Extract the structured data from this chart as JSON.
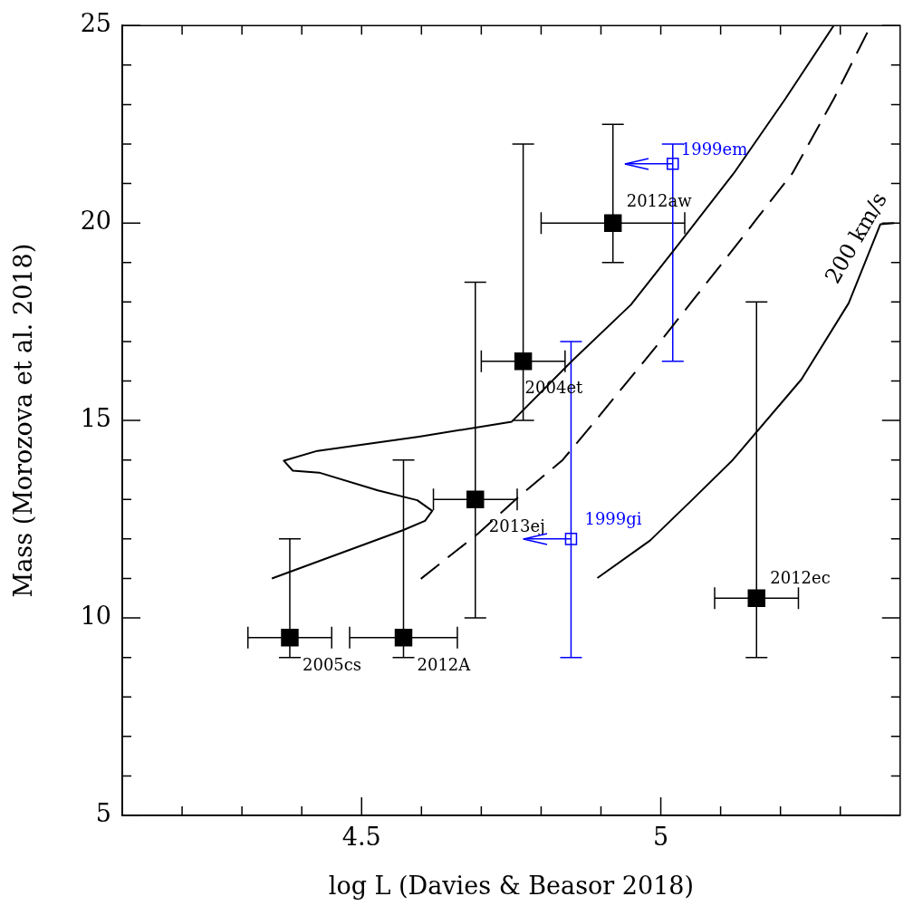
{
  "chart_data": {
    "type": "scatter",
    "xlabel": "log L (Davies & Beasor 2018)",
    "ylabel": "Mass (Morozova et al. 2018)",
    "xlim": [
      4.1,
      5.4
    ],
    "ylim": [
      5,
      25
    ],
    "xticks": [
      {
        "value": 4.2,
        "label": null
      },
      {
        "value": 4.3,
        "label": null
      },
      {
        "value": 4.4,
        "label": null
      },
      4.5,
      {
        "value": 4.6,
        "label": null
      },
      {
        "value": 4.7,
        "label": null
      },
      {
        "value": 4.8,
        "label": null
      },
      {
        "value": 4.9,
        "label": null
      },
      5,
      {
        "value": 5.1,
        "label": null
      },
      {
        "value": 5.2,
        "label": null
      },
      {
        "value": 5.3,
        "label": null
      }
    ],
    "yticks": [
      5,
      {
        "value": 6,
        "label": null
      },
      {
        "value": 7,
        "label": null
      },
      {
        "value": 8,
        "label": null
      },
      {
        "value": 9,
        "label": null
      },
      10,
      {
        "value": 11,
        "label": null
      },
      {
        "value": 12,
        "label": null
      },
      {
        "value": 13,
        "label": null
      },
      {
        "value": 14,
        "label": null
      },
      15,
      {
        "value": 16,
        "label": null
      },
      {
        "value": 17,
        "label": null
      },
      {
        "value": 18,
        "label": null
      },
      {
        "value": 19,
        "label": null
      },
      20,
      {
        "value": 21,
        "label": null
      },
      {
        "value": 22,
        "label": null
      },
      {
        "value": 23,
        "label": null
      },
      {
        "value": 24,
        "label": null
      },
      25
    ],
    "grid": false,
    "legend": false,
    "marker": "square",
    "annotations": [
      "200 km/s"
    ],
    "series": [
      {
        "name": "2005cs",
        "color": "#000000",
        "x": [
          4.38
        ],
        "values": [
          9.5
        ],
        "errors": [
          [
            9,
            12
          ]
        ],
        "xerrors": [
          0.07
        ]
      },
      {
        "name": "2012A",
        "color": "#000000",
        "x": [
          4.57
        ],
        "values": [
          9.5
        ],
        "errors": [
          [
            9,
            14
          ]
        ],
        "xerrors": [
          0.09
        ]
      },
      {
        "name": "2013ej",
        "color": "#000000",
        "x": [
          4.69
        ],
        "values": [
          13
        ],
        "errors": [
          [
            10,
            18.5
          ]
        ],
        "xerrors": [
          0.07
        ]
      },
      {
        "name": "2004et",
        "color": "#000000",
        "x": [
          4.77
        ],
        "values": [
          16.5
        ],
        "errors": [
          [
            15,
            22
          ]
        ],
        "xerrors": [
          0.07
        ]
      },
      {
        "name": "2012aw",
        "color": "#000000",
        "x": [
          4.92
        ],
        "values": [
          20
        ],
        "errors": [
          [
            19,
            22.5
          ]
        ],
        "xerrors": [
          0.12
        ]
      },
      {
        "name": "2012ec",
        "color": "#000000",
        "x": [
          5.16
        ],
        "values": [
          10.5
        ],
        "errors": [
          [
            9,
            18
          ]
        ],
        "xerrors": [
          0.07
        ]
      },
      {
        "name": "1999em",
        "color": "#0000ff",
        "x": [
          5.02
        ],
        "values": [
          21.5
        ],
        "errors": [
          [
            16.5,
            22
          ]
        ],
        "xerrors": [
          [
            4.94,
            5.02
          ]
        ]
      },
      {
        "name": "1999gi",
        "color": "#0000ff",
        "x": [
          4.85
        ],
        "values": [
          12
        ],
        "errors": [
          [
            9,
            17
          ]
        ],
        "xerrors": [
          [
            4.77,
            4.85
          ]
        ]
      },
      {
        "type": "line",
        "color": "#000000",
        "line_style": "solid",
        "marker": "none",
        "x": [
          4.35,
          4.569,
          4.606,
          4.618,
          4.593,
          4.527,
          4.429,
          4.385,
          4.37,
          4.426,
          4.596,
          4.751,
          4.851,
          4.95,
          5.024,
          5.122,
          5.208,
          5.289
        ],
        "values": [
          11.0,
          12.22,
          12.46,
          12.71,
          12.98,
          13.23,
          13.68,
          13.73,
          13.98,
          14.23,
          14.59,
          14.97,
          16.5,
          17.93,
          19.35,
          21.26,
          23.14,
          25.0
        ]
      },
      {
        "type": "line",
        "color": "#000000",
        "line_style": "dashed",
        "marker": "none",
        "x": [
          4.599,
          4.695,
          4.765,
          4.836,
          4.891,
          5.004,
          5.142,
          5.161,
          5.22,
          5.289,
          5.351
        ],
        "values": [
          10.99,
          12.14,
          13.1,
          14.0,
          15.0,
          17.09,
          19.74,
          20.12,
          21.26,
          23.14,
          25.0
        ]
      },
      {
        "type": "line",
        "color": "#000000",
        "line_style": "solid",
        "marker": "none",
        "x": [
          4.894,
          4.982,
          5.049,
          5.119,
          5.235,
          5.314,
          5.367,
          5.39
        ],
        "values": [
          11.01,
          11.96,
          12.94,
          13.98,
          16.04,
          17.97,
          19.97,
          20.0
        ]
      }
    ]
  }
}
